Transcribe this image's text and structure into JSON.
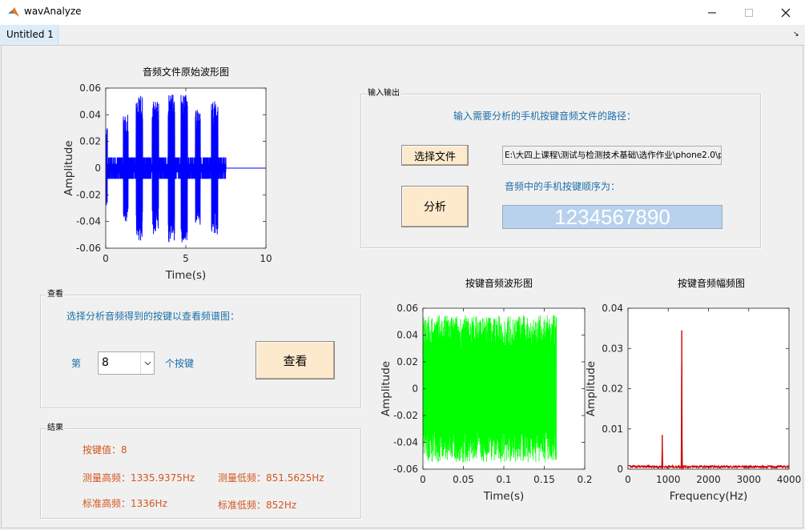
{
  "window": {
    "title": "wavAnalyze"
  },
  "tabs": [
    {
      "label": "Untitled 1"
    }
  ],
  "io_panel": {
    "title": "输入输出",
    "prompt": "输入需要分析的手机按键音频文件的路径：",
    "choose_file_label": "选择文件",
    "file_path": "E:\\大四上课程\\测试与检测技术基础\\选作作业\\phone2.0\\p",
    "analyze_label": "分析",
    "sequence_label": "音频中的手机按键顺序为：",
    "sequence_value": "1234567890"
  },
  "view_panel": {
    "title": "查看",
    "prompt": "选择分析音频得到的按键以查看频谱图：",
    "prefix": "第",
    "selected_key": "8",
    "suffix": "个按键",
    "view_label": "查看"
  },
  "result_panel": {
    "title": "结果",
    "key_value": "按键值：8",
    "measured_high": "测量高频：1335.9375Hz",
    "measured_low": "测量低频：851.5625Hz",
    "standard_high": "标准高频：1336Hz",
    "standard_low": "标准低频：852Hz"
  },
  "colors": {
    "wave_main": "#0000ff",
    "wave_key": "#00ff00",
    "spectrum": "#cc0000",
    "seq_bg": "#b8d2ee",
    "label_blue": "#1c6fa8",
    "result_orange": "#d2561e"
  },
  "chart_data": [
    {
      "type": "line",
      "title": "音频文件原始波形图",
      "xlabel": "Time(s)",
      "ylabel": "Amplitude",
      "xlim": [
        0,
        10
      ],
      "ylim": [
        -0.06,
        0.06
      ],
      "xticks": [
        "0",
        "5",
        "10"
      ],
      "yticks": [
        "0.06",
        "0.04",
        "0.02",
        "0",
        "-0.02",
        "-0.04",
        "-0.06"
      ],
      "noise_amplitude": 0.008,
      "bursts": [
        {
          "x": [
            0.0,
            0.1
          ],
          "amp": 0.031
        },
        {
          "x": [
            1.1,
            1.4
          ],
          "amp": 0.04
        },
        {
          "x": [
            1.9,
            2.3
          ],
          "amp": 0.055
        },
        {
          "x": [
            2.9,
            3.3
          ],
          "amp": 0.05
        },
        {
          "x": [
            3.9,
            4.3
          ],
          "amp": 0.056
        },
        {
          "x": [
            4.7,
            5.1
          ],
          "amp": 0.056
        },
        {
          "x": [
            5.6,
            5.9
          ],
          "amp": 0.044
        },
        {
          "x": [
            6.6,
            7.0
          ],
          "amp": 0.05
        }
      ]
    },
    {
      "type": "line",
      "title": "按键音频波形图",
      "xlabel": "Time(s)",
      "ylabel": "Amplitude",
      "xlim": [
        0,
        0.2
      ],
      "ylim": [
        -0.06,
        0.06
      ],
      "xticks": [
        "0",
        "0.05",
        "0.1",
        "0.15",
        "0.2"
      ],
      "yticks": [
        "0.06",
        "0.04",
        "0.02",
        "0",
        "-0.02",
        "-0.04",
        "-0.06"
      ],
      "signal_end": 0.165,
      "amplitude": 0.055
    },
    {
      "type": "line",
      "title": "按键音频幅频图",
      "xlabel": "Frequency(Hz)",
      "ylabel": "Amplitude",
      "xlim": [
        0,
        4000
      ],
      "ylim": [
        0,
        0.04
      ],
      "xticks": [
        "0",
        "1000",
        "2000",
        "3000",
        "4000"
      ],
      "yticks": [
        "0.04",
        "0.03",
        "0.02",
        "0.01",
        "0"
      ],
      "peaks": [
        {
          "freq": 851.5625,
          "amp": 0.0085
        },
        {
          "freq": 1335.9375,
          "amp": 0.0345
        }
      ]
    }
  ]
}
